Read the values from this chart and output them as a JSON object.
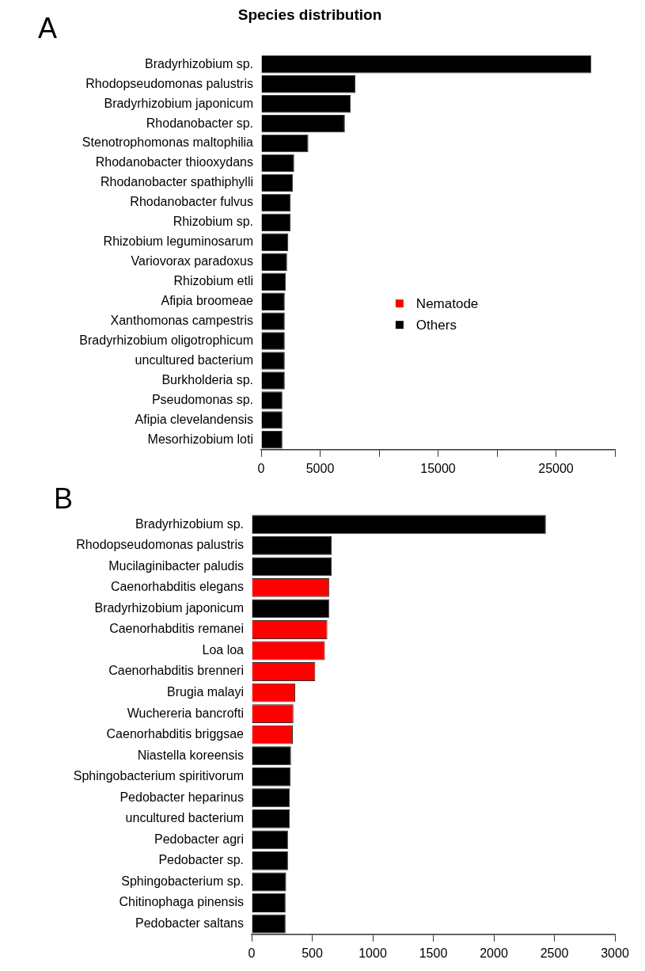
{
  "chart_data": [
    {
      "type": "bar",
      "orientation": "horizontal",
      "title": "Species distribution",
      "annotations": [
        "A"
      ],
      "categories": [
        "Bradyrhizobium sp.",
        "Rhodopseudomonas palustris",
        "Bradyrhizobium japonicum",
        "Rhodanobacter sp.",
        "Stenotrophomonas maltophilia",
        "Rhodanobacter thiooxydans",
        "Rhodanobacter spathiphylli",
        "Rhodanobacter fulvus",
        "Rhizobium sp.",
        "Rhizobium leguminosarum",
        "Variovorax paradoxus",
        "Rhizobium etli",
        "Afipia broomeae",
        "Xanthomonas campestris",
        "Bradyrhizobium oligotrophicum",
        "uncultured bacterium",
        "Burkholderia sp.",
        "Pseudomonas sp.",
        "Afipia clevelandensis",
        "Mesorhizobium loti"
      ],
      "series": [
        {
          "name": "Nematode",
          "color": "#ff0000",
          "values": [
            null,
            null,
            null,
            null,
            null,
            null,
            null,
            null,
            null,
            null,
            null,
            null,
            null,
            null,
            null,
            null,
            null,
            null,
            null,
            null
          ]
        },
        {
          "name": "Others",
          "color": "#000000",
          "values": [
            28000,
            8000,
            7600,
            7100,
            4000,
            2800,
            2700,
            2500,
            2500,
            2300,
            2200,
            2100,
            2000,
            2000,
            2000,
            2000,
            2000,
            1800,
            1800,
            1800
          ]
        }
      ],
      "xlim": [
        0,
        30000
      ],
      "xticks": [
        0,
        5000,
        {
          "value": 10000,
          "label": null
        },
        15000,
        {
          "value": 20000,
          "label": null
        },
        25000,
        {
          "value": 30000,
          "label": null
        }
      ],
      "grid": false,
      "legend": "right"
    },
    {
      "type": "bar",
      "orientation": "horizontal",
      "annotations": [
        "B"
      ],
      "categories": [
        "Bradyrhizobium sp.",
        "Rhodopseudomonas palustris",
        "Mucilaginibacter paludis",
        "Caenorhabditis elegans",
        "Bradyrhizobium japonicum",
        "Caenorhabditis remanei",
        "Loa loa",
        "Caenorhabditis brenneri",
        "Brugia malayi",
        "Wuchereria bancrofti",
        "Caenorhabditis briggsae",
        "Niastella koreensis",
        "Sphingobacterium spiritivorum",
        "Pedobacter heparinus",
        "uncultured bacterium",
        "Pedobacter agri",
        "Pedobacter sp.",
        "Sphingobacterium sp.",
        "Chitinophaga pinensis",
        "Pedobacter saltans"
      ],
      "series": [
        {
          "color": "#ff0000",
          "values": [
            null,
            null,
            null,
            640,
            null,
            625,
            605,
            525,
            360,
            345,
            340,
            null,
            null,
            null,
            null,
            null,
            null,
            null,
            null,
            null
          ]
        },
        {
          "color": "#000000",
          "values": [
            2430,
            660,
            660,
            null,
            640,
            null,
            null,
            null,
            null,
            null,
            null,
            325,
            320,
            315,
            315,
            300,
            300,
            285,
            280,
            280
          ]
        }
      ],
      "xlim": [
        0,
        3000
      ],
      "xticks": [
        0,
        500,
        1000,
        1500,
        2000,
        2500,
        3000
      ],
      "grid": false,
      "legend": false
    }
  ]
}
